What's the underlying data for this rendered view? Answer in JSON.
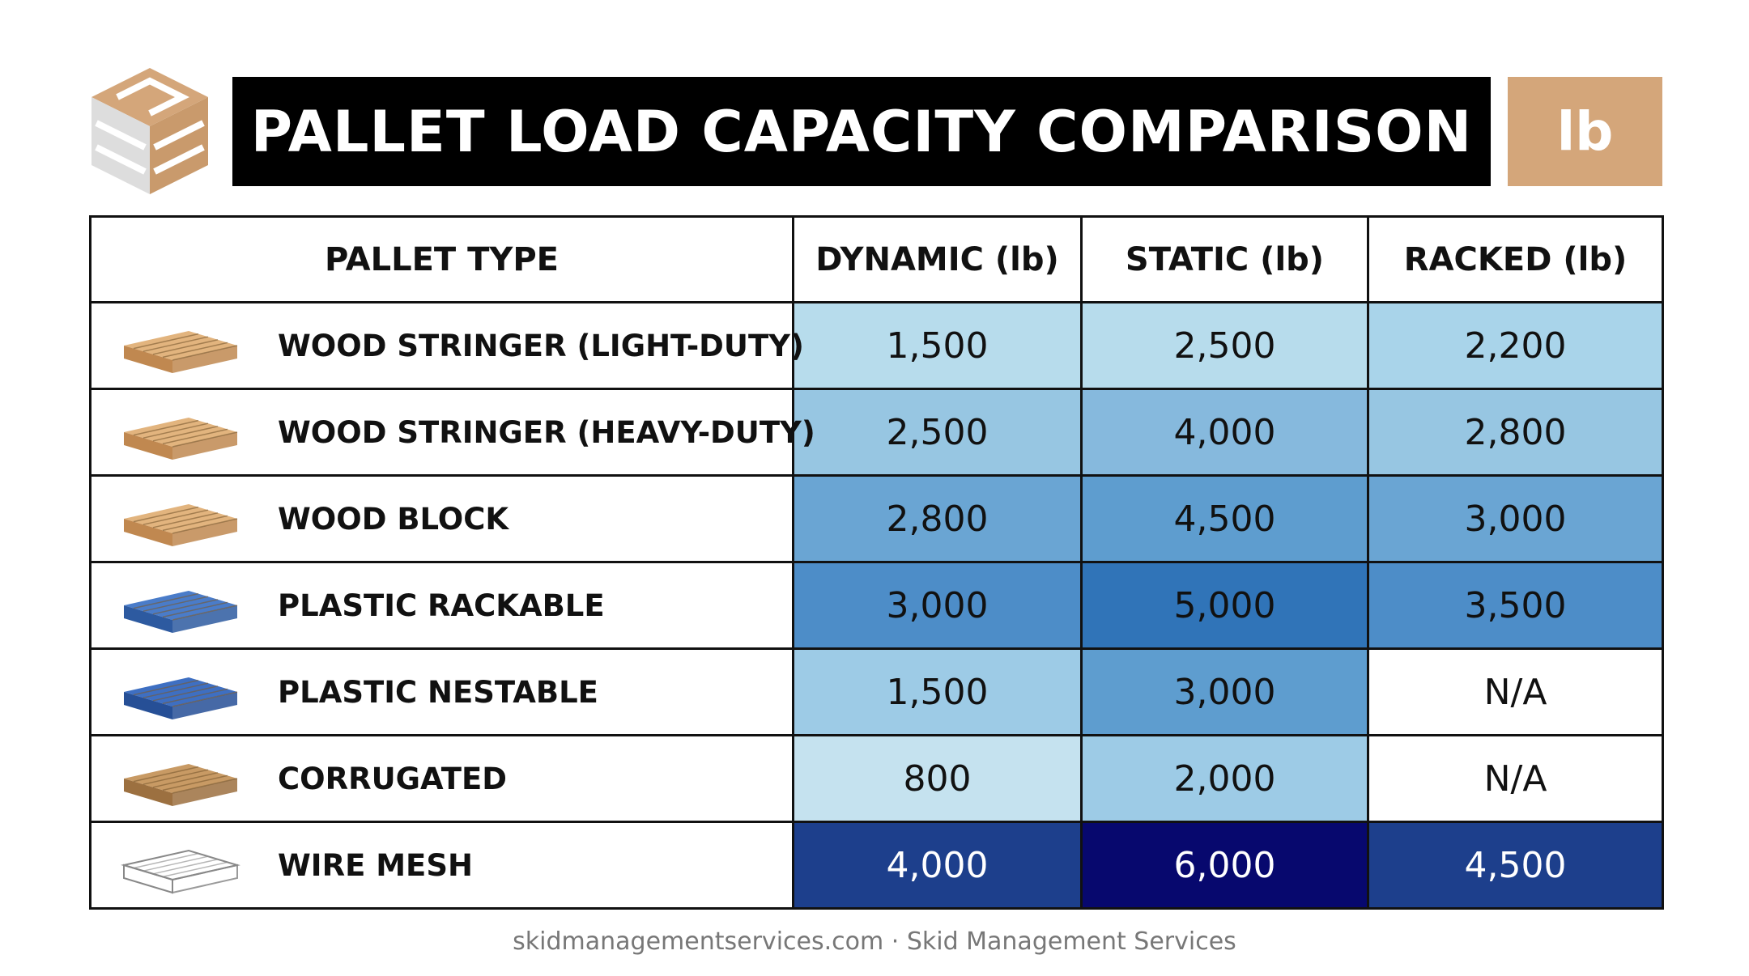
{
  "header": {
    "title": "PALLET LOAD CAPACITY COMPARISON",
    "unit": "lb"
  },
  "table": {
    "columns": [
      "PALLET TYPE",
      "DYNAMIC (lb)",
      "STATIC (lb)",
      "RACKED (lb)"
    ],
    "rows": [
      [
        "WOOD STRINGER (LIGHT-DUTY)",
        "1,500",
        "2,500",
        "2,200"
      ],
      [
        "WOOD STRINGER (HEAVY-DUTY)",
        "2,500",
        "4,000",
        "2,800"
      ],
      [
        "WOOD BLOCK",
        "2,800",
        "4,500",
        "3,000"
      ],
      [
        "PLASTIC RACKABLE",
        "3,000",
        "5,000",
        "3,500"
      ],
      [
        "PLASTIC NESTABLE",
        "1,500",
        "3,000",
        "N/A"
      ],
      [
        "CORRUGATED",
        "800",
        "2,000",
        "N/A"
      ],
      [
        "WIRE MESH",
        "4,000",
        "6,000",
        "4,500"
      ]
    ]
  },
  "footer": "skidmanagementservices.com · Skid Management Services"
}
